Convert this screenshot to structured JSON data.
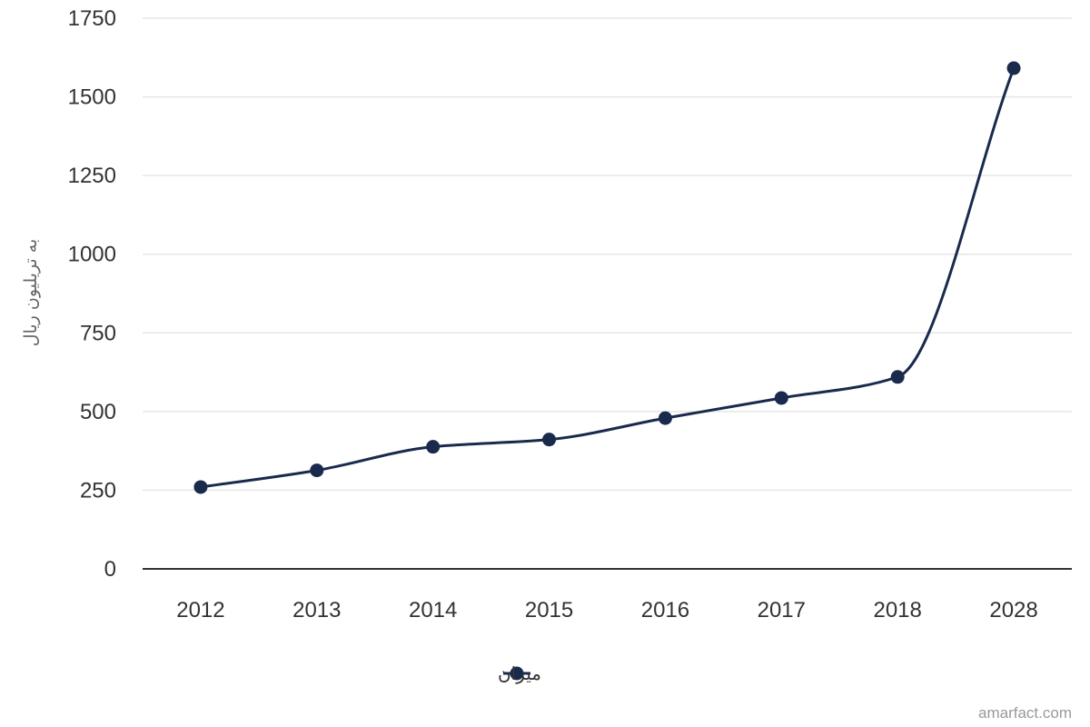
{
  "chart_data": {
    "type": "line",
    "categories": [
      "2012",
      "2013",
      "2014",
      "2015",
      "2016",
      "2017",
      "2018",
      "2028"
    ],
    "series": [
      {
        "name": "میزان",
        "values": [
          260,
          313,
          388,
          411,
          479,
          543,
          610,
          1591
        ],
        "color": "#1a2a4d"
      }
    ],
    "title": "",
    "xlabel": "",
    "ylabel": "به تریلیون ریال",
    "ylim": [
      0,
      1750
    ],
    "yticks": [
      0,
      250,
      500,
      750,
      1000,
      1250,
      1500,
      1750
    ],
    "grid": true,
    "smooth": true,
    "legend": "bottom-center"
  },
  "credit": "amarfact.com",
  "colors": {
    "series": "#1a2a4d",
    "grid": "#e6e6e6",
    "axis": "#333333",
    "tick_text": "#333333",
    "axis_title": "#666666",
    "credit": "#999999"
  }
}
